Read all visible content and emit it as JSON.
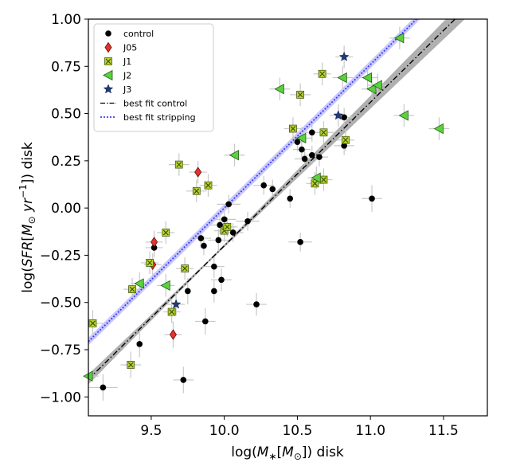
{
  "chart_data": {
    "type": "scatter",
    "title": "",
    "xlabel": "log(M_*[M_⊙]) disk",
    "ylabel": "log(SFR[M_⊙ yr^{-1}]) disk",
    "xlim": [
      9.07,
      11.8
    ],
    "ylim": [
      -1.1,
      1.0
    ],
    "xticks": [
      9.5,
      10.0,
      10.5,
      11.0,
      11.5
    ],
    "xtick_labels": [
      "9.5",
      "10.0",
      "10.5",
      "11.0",
      "11.5"
    ],
    "yticks": [
      -1.0,
      -0.75,
      -0.5,
      -0.25,
      0.0,
      0.25,
      0.5,
      0.75,
      1.0
    ],
    "ytick_labels": [
      "−1.00",
      "−0.75",
      "−0.50",
      "−0.25",
      "0.00",
      "0.25",
      "0.50",
      "0.75",
      "1.00"
    ],
    "legend_position": "top-left",
    "legend": [
      {
        "label": "control",
        "marker": "circle",
        "color": "#000000"
      },
      {
        "label": "J05",
        "marker": "diamond",
        "color": "#e8302a"
      },
      {
        "label": "J1",
        "marker": "x-square",
        "color": "#b7d62e"
      },
      {
        "label": "J2",
        "marker": "triangle-left",
        "color": "#5ad23c"
      },
      {
        "label": "J3",
        "marker": "star",
        "color": "#1f3a7a"
      },
      {
        "label": "best fit control",
        "marker": "dashdot-line",
        "color": "#000000"
      },
      {
        "label": "best fit stripping",
        "marker": "dotted-line",
        "color": "#3b3bff"
      }
    ],
    "fit_lines": {
      "control": {
        "x": [
          9.07,
          11.8
        ],
        "slope": 0.76,
        "intercept": -7.8,
        "band_halfwidth_at_edges": 0.05,
        "band_color": "#b0b0b0",
        "line_color": "#000000"
      },
      "stripping": {
        "x": [
          9.07,
          11.8
        ],
        "slope": 0.76,
        "intercept": -7.6,
        "band_halfwidth": 0.02,
        "band_color": "#c8c8ff",
        "line_color": "#3b3bff"
      }
    },
    "series": [
      {
        "name": "control",
        "points": [
          {
            "x": 9.17,
            "y": -0.95,
            "xerr": 0.1,
            "yerr": 0.07
          },
          {
            "x": 9.42,
            "y": -0.72,
            "xerr": 0.0,
            "yerr": 0.07
          },
          {
            "x": 9.52,
            "y": -0.21,
            "xerr": 0.06,
            "yerr": 0.05
          },
          {
            "x": 9.72,
            "y": -0.91,
            "xerr": 0.07,
            "yerr": 0.07
          },
          {
            "x": 9.75,
            "y": -0.44,
            "xerr": 0.0,
            "yerr": 0.07
          },
          {
            "x": 9.84,
            "y": -0.16,
            "xerr": 0.07,
            "yerr": 0.05
          },
          {
            "x": 9.86,
            "y": -0.2,
            "xerr": 0.0,
            "yerr": 0.05
          },
          {
            "x": 9.87,
            "y": -0.6,
            "xerr": 0.07,
            "yerr": 0.07
          },
          {
            "x": 9.93,
            "y": -0.31,
            "xerr": 0.07,
            "yerr": 0.06
          },
          {
            "x": 9.93,
            "y": -0.44,
            "xerr": 0.0,
            "yerr": 0.06
          },
          {
            "x": 9.96,
            "y": -0.17,
            "xerr": 0.07,
            "yerr": 0.06
          },
          {
            "x": 9.97,
            "y": -0.09,
            "xerr": 0.07,
            "yerr": 0.05
          },
          {
            "x": 9.98,
            "y": -0.38,
            "xerr": 0.07,
            "yerr": 0.06
          },
          {
            "x": 10.0,
            "y": -0.06,
            "xerr": 0.08,
            "yerr": 0.05
          },
          {
            "x": 10.02,
            "y": -0.1,
            "xerr": 0.07,
            "yerr": 0.05
          },
          {
            "x": 10.03,
            "y": 0.02,
            "xerr": 0.08,
            "yerr": 0.05
          },
          {
            "x": 10.06,
            "y": -0.13,
            "xerr": 0.07,
            "yerr": 0.05
          },
          {
            "x": 10.16,
            "y": -0.07,
            "xerr": 0.08,
            "yerr": 0.05
          },
          {
            "x": 10.22,
            "y": -0.51,
            "xerr": 0.07,
            "yerr": 0.06
          },
          {
            "x": 10.27,
            "y": 0.12,
            "xerr": 0.07,
            "yerr": 0.05
          },
          {
            "x": 10.33,
            "y": 0.1,
            "xerr": 0.0,
            "yerr": 0.05
          },
          {
            "x": 10.45,
            "y": 0.05,
            "xerr": 0.0,
            "yerr": 0.05
          },
          {
            "x": 10.5,
            "y": 0.35,
            "xerr": 0.06,
            "yerr": 0.05
          },
          {
            "x": 10.52,
            "y": -0.18,
            "xerr": 0.08,
            "yerr": 0.05
          },
          {
            "x": 10.53,
            "y": 0.31,
            "xerr": 0.06,
            "yerr": 0.05
          },
          {
            "x": 10.55,
            "y": 0.26,
            "xerr": 0.07,
            "yerr": 0.05
          },
          {
            "x": 10.6,
            "y": 0.4,
            "xerr": 0.05,
            "yerr": 0.05
          },
          {
            "x": 10.6,
            "y": 0.28,
            "xerr": 0.06,
            "yerr": 0.05
          },
          {
            "x": 10.65,
            "y": 0.27,
            "xerr": 0.06,
            "yerr": 0.05
          },
          {
            "x": 10.82,
            "y": 0.48,
            "xerr": 0.06,
            "yerr": 0.05
          },
          {
            "x": 10.82,
            "y": 0.33,
            "xerr": 0.07,
            "yerr": 0.05
          },
          {
            "x": 11.01,
            "y": 0.05,
            "xerr": 0.07,
            "yerr": 0.07
          }
        ]
      },
      {
        "name": "J05",
        "points": [
          {
            "x": 9.52,
            "y": -0.18,
            "xerr": 0.06,
            "yerr": 0.06
          },
          {
            "x": 9.51,
            "y": -0.3,
            "xerr": 0.06,
            "yerr": 0.06
          },
          {
            "x": 9.65,
            "y": -0.67,
            "xerr": 0.06,
            "yerr": 0.07
          },
          {
            "x": 9.82,
            "y": 0.19,
            "xerr": 0.06,
            "yerr": 0.06
          }
        ]
      },
      {
        "name": "J1",
        "points": [
          {
            "x": 9.1,
            "y": -0.61,
            "xerr": 0.07,
            "yerr": 0.07
          },
          {
            "x": 9.36,
            "y": -0.83,
            "xerr": 0.07,
            "yerr": 0.07
          },
          {
            "x": 9.37,
            "y": -0.43,
            "xerr": 0.06,
            "yerr": 0.06
          },
          {
            "x": 9.49,
            "y": -0.29,
            "xerr": 0.06,
            "yerr": 0.06
          },
          {
            "x": 9.6,
            "y": -0.13,
            "xerr": 0.06,
            "yerr": 0.06
          },
          {
            "x": 9.64,
            "y": -0.55,
            "xerr": 0.06,
            "yerr": 0.06
          },
          {
            "x": 9.69,
            "y": 0.23,
            "xerr": 0.07,
            "yerr": 0.06
          },
          {
            "x": 9.73,
            "y": -0.32,
            "xerr": 0.06,
            "yerr": 0.06
          },
          {
            "x": 9.81,
            "y": 0.09,
            "xerr": 0.07,
            "yerr": 0.06
          },
          {
            "x": 9.89,
            "y": 0.12,
            "xerr": 0.06,
            "yerr": 0.06
          },
          {
            "x": 10.0,
            "y": -0.12,
            "xerr": 0.07,
            "yerr": 0.06
          },
          {
            "x": 10.02,
            "y": -0.1,
            "xerr": 0.06,
            "yerr": 0.05
          },
          {
            "x": 10.47,
            "y": 0.42,
            "xerr": 0.06,
            "yerr": 0.06
          },
          {
            "x": 10.52,
            "y": 0.6,
            "xerr": 0.07,
            "yerr": 0.06
          },
          {
            "x": 10.62,
            "y": 0.13,
            "xerr": 0.06,
            "yerr": 0.06
          },
          {
            "x": 10.67,
            "y": 0.71,
            "xerr": 0.06,
            "yerr": 0.06
          },
          {
            "x": 10.68,
            "y": 0.4,
            "xerr": 0.07,
            "yerr": 0.06
          },
          {
            "x": 10.68,
            "y": 0.15,
            "xerr": 0.06,
            "yerr": 0.06
          },
          {
            "x": 10.83,
            "y": 0.36,
            "xerr": 0.06,
            "yerr": 0.06
          }
        ]
      },
      {
        "name": "J2",
        "points": [
          {
            "x": 9.07,
            "y": -0.89,
            "xerr": 0.07,
            "yerr": 0.07
          },
          {
            "x": 9.42,
            "y": -0.4,
            "xerr": 0.06,
            "yerr": 0.06
          },
          {
            "x": 9.6,
            "y": -0.41,
            "xerr": 0.06,
            "yerr": 0.06
          },
          {
            "x": 10.07,
            "y": 0.28,
            "xerr": 0.07,
            "yerr": 0.06
          },
          {
            "x": 10.38,
            "y": 0.63,
            "xerr": 0.07,
            "yerr": 0.06
          },
          {
            "x": 10.53,
            "y": 0.37,
            "xerr": 0.07,
            "yerr": 0.06
          },
          {
            "x": 10.63,
            "y": 0.16,
            "xerr": 0.06,
            "yerr": 0.06
          },
          {
            "x": 10.81,
            "y": 0.69,
            "xerr": 0.07,
            "yerr": 0.06
          },
          {
            "x": 10.98,
            "y": 0.69,
            "xerr": 0.07,
            "yerr": 0.06
          },
          {
            "x": 11.01,
            "y": 0.63,
            "xerr": 0.07,
            "yerr": 0.06
          },
          {
            "x": 11.05,
            "y": 0.65,
            "xerr": 0.07,
            "yerr": 0.06
          },
          {
            "x": 11.2,
            "y": 0.9,
            "xerr": 0.07,
            "yerr": 0.06
          },
          {
            "x": 11.23,
            "y": 0.49,
            "xerr": 0.07,
            "yerr": 0.06
          },
          {
            "x": 11.47,
            "y": 0.42,
            "xerr": 0.07,
            "yerr": 0.06
          }
        ]
      },
      {
        "name": "J3",
        "points": [
          {
            "x": 9.67,
            "y": -0.51,
            "xerr": 0.06,
            "yerr": 0.06
          },
          {
            "x": 10.82,
            "y": 0.8,
            "xerr": 0.06,
            "yerr": 0.06
          },
          {
            "x": 10.78,
            "y": 0.49,
            "xerr": 0.06,
            "yerr": 0.06
          }
        ]
      }
    ]
  }
}
